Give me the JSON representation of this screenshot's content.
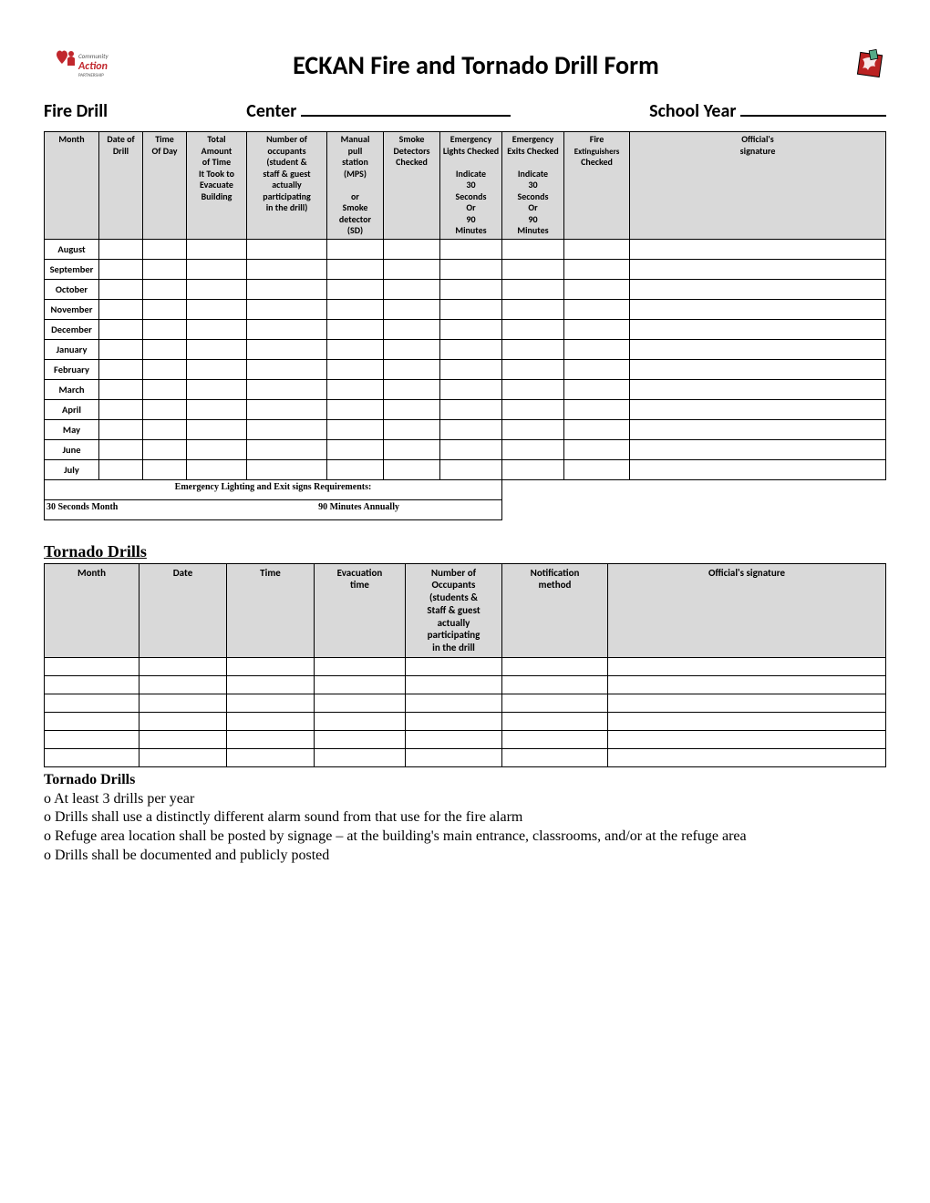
{
  "title": "ECKAN Fire and Tornado Drill Form",
  "subheader": {
    "fire_drill": "Fire Drill",
    "center": "Center",
    "school_year": "School Year"
  },
  "fire_table": {
    "headers": [
      "Month",
      "Date of Drill",
      "Time Of Day",
      "Total Amount of Time It Took to Evacuate Building",
      "Number of occupants (student & staff & guest actually participating in the drill)",
      "Manual pull station (MPS)\n\nor Smoke detector (SD)",
      "Smoke Detectors Checked",
      "Emergency Lights Checked\n\nIndicate 30 Seconds Or 90 Minutes",
      "Emergency Exits Checked\n\nIndicate 30 Seconds Or 90 Minutes",
      "Fire Extinguishers Checked",
      "Official's signature"
    ],
    "col_widths": [
      "60px",
      "48px",
      "48px",
      "66px",
      "88px",
      "62px",
      "62px",
      "68px",
      "68px",
      "72px",
      "auto"
    ],
    "months": [
      "August",
      "September",
      "October",
      "November",
      "December",
      "January",
      "February",
      "March",
      "April",
      "May",
      "June",
      "July"
    ],
    "req_title": "Emergency Lighting and Exit signs Requirements:",
    "req_left": "30 Seconds Month",
    "req_right": "90 Minutes Annually"
  },
  "tornado_title": "Tornado Drills",
  "tornado_table": {
    "headers": [
      "Month",
      "Date",
      "Time",
      "Evacuation time",
      "Number of Occupants (students & Staff & guest actually participating in the drill",
      "Notification method",
      "Official's signature"
    ],
    "col_widths": [
      "104px",
      "96px",
      "96px",
      "100px",
      "106px",
      "116px",
      "auto"
    ],
    "row_count": 6
  },
  "notes": {
    "heading": "Tornado Drills",
    "items": [
      "At least 3 drills per year",
      "Drills shall use a distinctly different alarm sound from that use for the fire alarm",
      "Refuge area location shall be posted by signage – at the building's main entrance, classrooms, and/or at the refuge area",
      "Drills shall be documented and publicly posted"
    ]
  },
  "colors": {
    "header_bg": "#d9d9d9",
    "border": "#000000",
    "text": "#000000"
  }
}
